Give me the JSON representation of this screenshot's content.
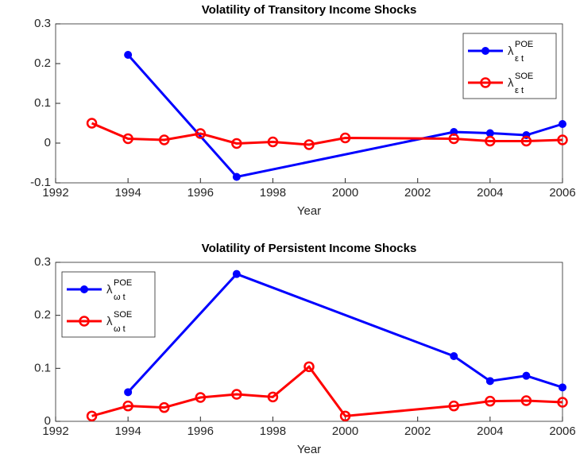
{
  "chart_data": [
    {
      "type": "line",
      "title": "Volatility of Transitory Income Shocks",
      "x_label": "Year",
      "xlim": [
        1992,
        2006
      ],
      "xticks": [
        1992,
        1994,
        1996,
        1998,
        2000,
        2002,
        2004,
        2006
      ],
      "ylim": [
        -0.1,
        0.3
      ],
      "yticks": [
        -0.1,
        0,
        0.1,
        0.2,
        0.3
      ],
      "legend": "northeast",
      "series": [
        {
          "name": "λ",
          "superscript": "POE",
          "subscript": "ε t",
          "color": "#0000ff",
          "marker": "filled",
          "x": [
            1994,
            1997,
            2003,
            2004,
            2005,
            2006
          ],
          "values": [
            0.222,
            -0.085,
            0.028,
            0.025,
            0.02,
            0.048
          ]
        },
        {
          "name": "λ",
          "superscript": "SOE",
          "subscript": "ε t",
          "color": "#ff0000",
          "marker": "open",
          "x": [
            1993,
            1994,
            1995,
            1996,
            1997,
            1998,
            1999,
            2000,
            2003,
            2004,
            2005,
            2006
          ],
          "values": [
            0.05,
            0.011,
            0.008,
            0.024,
            -0.001,
            0.003,
            -0.004,
            0.013,
            0.011,
            0.005,
            0.005,
            0.008
          ]
        }
      ]
    },
    {
      "type": "line",
      "title": "Volatility of Persistent Income Shocks",
      "x_label": "Year",
      "xlim": [
        1992,
        2006
      ],
      "xticks": [
        1992,
        1994,
        1996,
        1998,
        2000,
        2002,
        2004,
        2006
      ],
      "ylim": [
        0,
        0.3
      ],
      "yticks": [
        0,
        0.1,
        0.2,
        0.3
      ],
      "legend": "northwest",
      "series": [
        {
          "name": "λ",
          "superscript": "POE",
          "subscript": "ω t",
          "color": "#0000ff",
          "marker": "filled",
          "x": [
            1994,
            1997,
            2003,
            2004,
            2005,
            2006
          ],
          "values": [
            0.055,
            0.278,
            0.123,
            0.076,
            0.086,
            0.064
          ]
        },
        {
          "name": "λ",
          "superscript": "SOE",
          "subscript": "ω t",
          "color": "#ff0000",
          "marker": "open",
          "x": [
            1993,
            1994,
            1995,
            1996,
            1997,
            1998,
            1999,
            2000,
            2003,
            2004,
            2005,
            2006
          ],
          "values": [
            0.01,
            0.029,
            0.026,
            0.045,
            0.051,
            0.046,
            0.103,
            0.01,
            0.029,
            0.038,
            0.039,
            0.036
          ]
        }
      ]
    }
  ]
}
